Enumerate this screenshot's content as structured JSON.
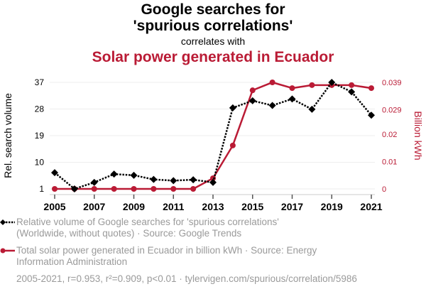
{
  "header": {
    "title": "Google searches for 'spurious correlations'",
    "subtitle": "correlates with",
    "title2": "Solar power generated in Ecuador"
  },
  "colors": {
    "series1": "#000000",
    "series2": "#BA1B35",
    "grid": "#eeeeee",
    "legend_text": "#9a9a9a"
  },
  "legend": {
    "series1": "Relative volume of Google searches for 'spurious correlations' (Worldwide, without quotes) · Source: Google Trends",
    "series1_line1": "Relative volume of Google searches for 'spurious correlations'",
    "series1_line2": "(Worldwide, without quotes) · Source: Google Trends",
    "series2_line1": "Total solar power generated in Ecuador in billion kWh · Source: Energy",
    "series2_line2": "Information Administration",
    "footer": "2005-2021, r=0.953, r²=0.909, p<0.01 · tylervigen.com/spurious/correlation/5986"
  },
  "chart_data": {
    "type": "line",
    "title": "Google searches for 'spurious correlations' correlates with Solar power generated in Ecuador",
    "x": [
      2005,
      2006,
      2007,
      2008,
      2009,
      2010,
      2011,
      2012,
      2013,
      2014,
      2015,
      2016,
      2017,
      2018,
      2019,
      2020,
      2021
    ],
    "xlabel": "",
    "xticks": [
      "2005",
      "2007",
      "2009",
      "2011",
      "2013",
      "2015",
      "2017",
      "2019",
      "2021"
    ],
    "xlim": [
      2005,
      2021
    ],
    "ylabel_left": "Rel. search volume",
    "ylabel_right": "Billion kWh",
    "yticks_left": [
      "1",
      "10",
      "19",
      "28",
      "37"
    ],
    "ylim_left": [
      1,
      37
    ],
    "yticks_right": [
      "0",
      "0.01",
      "0.02",
      "0.029",
      "0.039"
    ],
    "ylim_right": [
      0,
      0.039
    ],
    "grid": true,
    "legend_position": "bottom",
    "series": [
      {
        "name": "Relative volume of Google searches for 'spurious correlations'",
        "axis": "left",
        "style": "dotted-diamond",
        "values": [
          6.5,
          1,
          3.2,
          6,
          5.6,
          4.2,
          3.8,
          4.1,
          3.2,
          28.4,
          30.8,
          29.2,
          31.4,
          27.9,
          37,
          33.8,
          25.9
        ]
      },
      {
        "name": "Total solar power generated in Ecuador in billion kWh",
        "axis": "right",
        "style": "solid-circle",
        "values": [
          0,
          0,
          0,
          0,
          0,
          0,
          0,
          0,
          0.0039,
          0.0159,
          0.0361,
          0.039,
          0.0369,
          0.038,
          0.038,
          0.038,
          0.0369
        ]
      }
    ],
    "annotation": "2005-2021, r=0.953, r²=0.909, p<0.01"
  }
}
